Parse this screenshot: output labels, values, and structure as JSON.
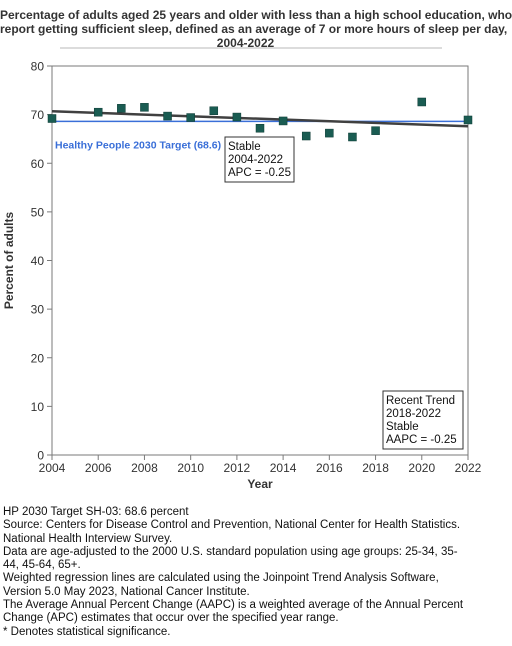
{
  "chart_data": {
    "type": "scatter",
    "title_lines": [
      "Percentage of adults aged 25 years and older with less than a high school education, who",
      "report getting sufficient sleep, defined as an average of 7 or more hours of sleep per day,",
      "2004-2022"
    ],
    "xlabel": "Year",
    "ylabel": "Percent of adults",
    "xlim": [
      2004,
      2022
    ],
    "ylim": [
      0,
      80
    ],
    "xticks": [
      2004,
      2006,
      2008,
      2010,
      2012,
      2014,
      2016,
      2018,
      2020,
      2022
    ],
    "yticks": [
      0,
      10,
      20,
      30,
      40,
      50,
      60,
      70,
      80
    ],
    "grid": false,
    "series": [
      {
        "type": "scatter",
        "color": "#1a5c52",
        "x": [
          2004,
          2006,
          2007,
          2008,
          2009,
          2010,
          2011,
          2012,
          2013,
          2014,
          2015,
          2016,
          2017,
          2018,
          2020,
          2022
        ],
        "y": [
          69.2,
          70.5,
          71.3,
          71.5,
          69.7,
          69.4,
          70.8,
          69.5,
          67.2,
          68.7,
          65.6,
          66.2,
          65.4,
          66.7,
          72.6,
          68.9
        ]
      },
      {
        "type": "line",
        "color": "#404040",
        "x": [
          2004,
          2022
        ],
        "y": [
          70.7,
          67.6
        ]
      }
    ],
    "target": {
      "value": 68.6,
      "label": "Healthy People 2030 Target (68.6)",
      "color": "#3a6fd8"
    },
    "annotations": [
      {
        "id": "stable-apc",
        "lines": [
          "Stable",
          "2004-2022",
          "APC = -0.25"
        ]
      },
      {
        "id": "recent-trend",
        "lines": [
          "Recent Trend",
          "2018-2022",
          "Stable",
          "AAPC = -0.25"
        ]
      }
    ]
  },
  "footnotes": [
    "HP 2030 Target SH-03: 68.6 percent",
    "Source: Centers for Disease Control and Prevention, National Center for Health Statistics.",
    "National Health Interview Survey.",
    "Data are age-adjusted to the 2000 U.S. standard population using age groups: 25-34, 35-",
    "44, 45-64, 65+.",
    "Weighted regression lines are calculated using the Joinpoint Trend Analysis Software,",
    "Version 5.0 May 2023, National Cancer Institute.",
    "The Average Annual Percent Change (AAPC) is a weighted average of the Annual Percent",
    "Change (APC) estimates that occur over the specified year range.",
    "* Denotes statistical significance."
  ]
}
